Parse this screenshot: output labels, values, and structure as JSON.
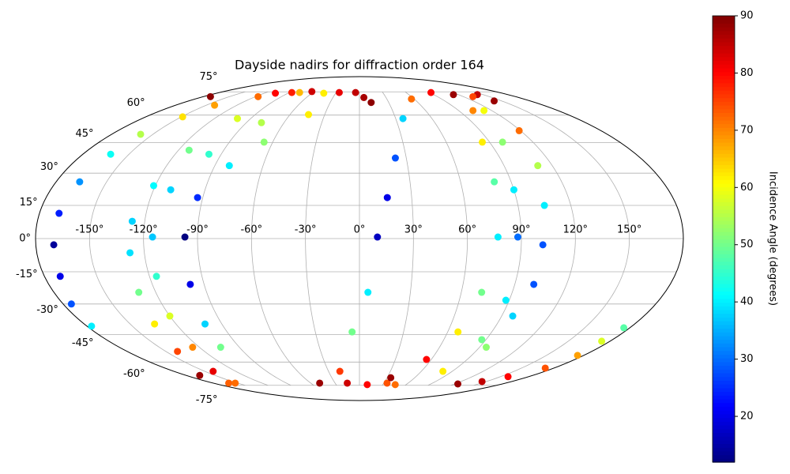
{
  "chart_data": {
    "type": "scatter",
    "projection": "mollweide",
    "title": "Dayside nadirs for diffraction order 164",
    "xlim": [
      -180,
      180
    ],
    "ylim": [
      -90,
      90
    ],
    "xticks": [
      {
        "value": -150,
        "label": "-150°"
      },
      {
        "value": -120,
        "label": "-120°"
      },
      {
        "value": -90,
        "label": "-90°"
      },
      {
        "value": -60,
        "label": "-60°"
      },
      {
        "value": -30,
        "label": "-30°"
      },
      {
        "value": 0,
        "label": "0°"
      },
      {
        "value": 30,
        "label": "30°"
      },
      {
        "value": 60,
        "label": "60°"
      },
      {
        "value": 90,
        "label": "90°"
      },
      {
        "value": 120,
        "label": "120°"
      },
      {
        "value": 150,
        "label": "150°"
      }
    ],
    "yticks": [
      {
        "value": -75,
        "label": "-75°"
      },
      {
        "value": -60,
        "label": "-60°"
      },
      {
        "value": -45,
        "label": "-45°"
      },
      {
        "value": -30,
        "label": "-30°"
      },
      {
        "value": -15,
        "label": "-15°"
      },
      {
        "value": 0,
        "label": "0°"
      },
      {
        "value": 15,
        "label": "15°"
      },
      {
        "value": 30,
        "label": "30°"
      },
      {
        "value": 45,
        "label": "45°"
      },
      {
        "value": 60,
        "label": "60°"
      },
      {
        "value": 75,
        "label": "75°"
      }
    ],
    "grid": true,
    "colormap": "jet",
    "colorbar": {
      "label": "Incidence Angle (degrees)",
      "lim": [
        12,
        90
      ],
      "ticks": [
        20,
        30,
        40,
        50,
        60,
        70,
        80,
        90
      ]
    },
    "x": [
      -87,
      -117,
      -142,
      -149,
      -159,
      -162,
      -166,
      -169,
      -170,
      -171,
      -175,
      -177,
      -172,
      -77,
      -101,
      -113,
      -121,
      -127,
      -128,
      -130,
      -134,
      -141,
      -166,
      -45,
      -78,
      -98,
      -110,
      -115,
      -116,
      -120,
      -125,
      -142,
      -161,
      -5,
      -44,
      -66,
      -81,
      -93,
      -97,
      -98,
      -101,
      -104,
      -153,
      -106,
      -63,
      -26,
      5,
      12,
      -49,
      -19,
      -5,
      5,
      10,
      16,
      23,
      36,
      57,
      92,
      114,
      -15,
      10,
      34,
      34,
      56,
      67,
      72,
      77,
      80,
      85,
      103,
      143,
      46,
      81,
      87,
      88,
      88,
      90,
      99,
      113,
      131,
      142,
      119,
      111,
      105,
      102,
      101,
      97,
      95,
      124,
      145,
      158,
      172,
      175,
      174,
      176
    ],
    "y": [
      74.5,
      71.6,
      66,
      59,
      49.4,
      39.2,
      25.9,
      11.4,
      -2.8,
      -17.1,
      -30,
      -40.8,
      71.6,
      74.5,
      58,
      41.2,
      24.1,
      7.8,
      -6.4,
      -24.5,
      -39.7,
      -54,
      -68.2,
      74,
      55.7,
      39.2,
      22.2,
      0.7,
      -17.1,
      -35.8,
      -51.7,
      -65.6,
      -73.4,
      74.5,
      60.3,
      45.3,
      33.6,
      18.6,
      0.7,
      -20.8,
      -39.7,
      -51.7,
      -73.4,
      74,
      75.2,
      74.5,
      71,
      67.7,
      -73.4,
      -65.6,
      -43.7,
      -24.5,
      0.7,
      18.6,
      37.3,
      58,
      70,
      74.5,
      73,
      -73.4,
      -74.5,
      -73.4,
      -69.7,
      -58.5,
      -43.7,
      -24.5,
      0.7,
      25.9,
      45.3,
      62.7,
      73,
      -74.5,
      -65.6,
      -47.7,
      -28.2,
      0.7,
      22.2,
      45.3,
      62.7,
      71.6,
      68.7,
      51.3,
      33.6,
      15,
      -2.8,
      -20.8,
      -35.8,
      -51.7,
      -74,
      -72.3,
      -69,
      -63.6,
      -56.2,
      -48.5,
      -41.6
    ],
    "values": [
      78,
      72,
      68,
      63,
      55,
      42,
      33,
      24,
      14,
      20,
      28,
      40,
      89,
      66,
      58,
      50,
      41,
      38,
      39,
      50,
      62,
      75,
      88,
      62,
      55,
      45,
      38,
      37,
      45,
      58,
      70,
      82,
      73,
      85,
      62,
      52,
      40,
      25,
      12,
      20,
      38,
      50,
      72,
      80,
      84,
      82,
      87,
      89,
      88,
      76,
      50,
      40,
      17,
      20,
      28,
      38,
      72,
      80,
      88,
      84,
      80,
      74,
      88,
      80,
      62,
      50,
      40,
      48,
      62,
      70,
      85,
      72,
      62,
      50,
      40,
      30,
      40,
      52,
      60,
      75,
      88,
      72,
      55,
      40,
      28,
      28,
      38,
      52,
      88,
      85,
      80,
      74,
      68,
      58,
      48
    ]
  }
}
